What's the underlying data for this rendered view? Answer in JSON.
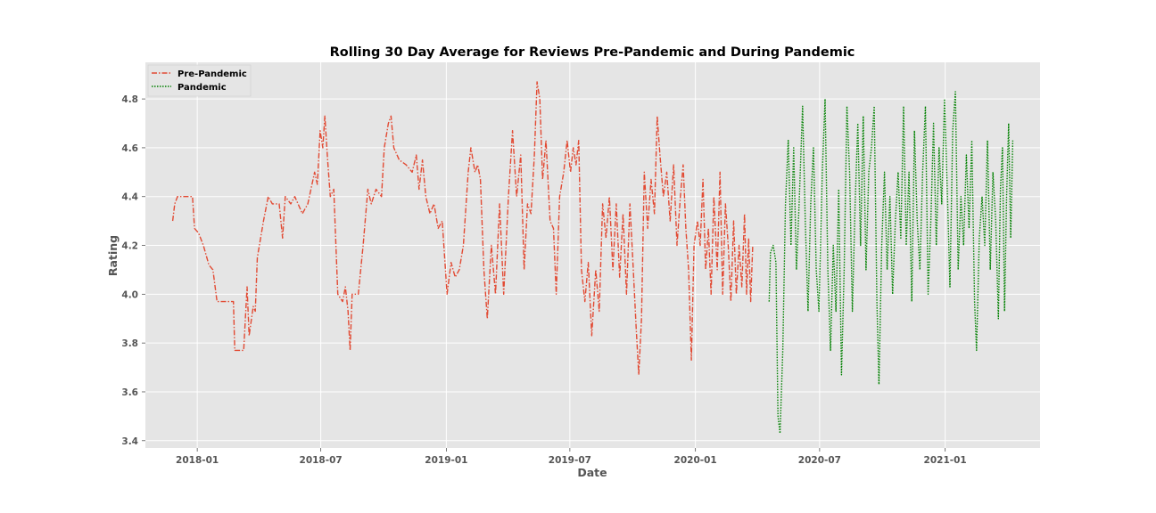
{
  "chart_data": {
    "type": "line",
    "title": "Rolling 30 Day Average for Reviews Pre-Pandemic and During Pandemic",
    "xlabel": "Date",
    "ylabel": "Rating",
    "ylim": [
      3.37,
      4.95
    ],
    "xlim": [
      "2017-10-17",
      "2021-05-20"
    ],
    "grid": true,
    "legend_position": "top-left",
    "x_ticks": [
      "2018-01",
      "2018-07",
      "2019-01",
      "2019-07",
      "2020-01",
      "2020-07",
      "2021-01"
    ],
    "y_ticks": [
      3.4,
      3.6,
      3.8,
      4.0,
      4.2,
      4.4,
      4.6,
      4.8
    ],
    "series": [
      {
        "name": "Pre-Pandemic",
        "color": "#E24A33",
        "style": "dashdot",
        "points": [
          [
            "2017-11-26",
            4.3
          ],
          [
            "2017-11-29",
            4.37
          ],
          [
            "2017-12-03",
            4.4
          ],
          [
            "2017-12-15",
            4.4
          ],
          [
            "2017-12-25",
            4.4
          ],
          [
            "2017-12-28",
            4.27
          ],
          [
            "2018-01-03",
            4.25
          ],
          [
            "2018-01-10",
            4.2
          ],
          [
            "2018-01-18",
            4.12
          ],
          [
            "2018-01-24",
            4.1
          ],
          [
            "2018-01-30",
            3.97
          ],
          [
            "2018-02-10",
            3.97
          ],
          [
            "2018-02-23",
            3.97
          ],
          [
            "2018-02-25",
            3.77
          ],
          [
            "2018-03-10",
            3.77
          ],
          [
            "2018-03-15",
            4.03
          ],
          [
            "2018-03-18",
            3.83
          ],
          [
            "2018-03-24",
            3.95
          ],
          [
            "2018-03-27",
            3.93
          ],
          [
            "2018-03-30",
            4.15
          ],
          [
            "2018-04-08",
            4.3
          ],
          [
            "2018-04-15",
            4.4
          ],
          [
            "2018-04-21",
            4.37
          ],
          [
            "2018-05-01",
            4.37
          ],
          [
            "2018-05-06",
            4.23
          ],
          [
            "2018-05-10",
            4.4
          ],
          [
            "2018-05-18",
            4.37
          ],
          [
            "2018-05-24",
            4.4
          ],
          [
            "2018-06-04",
            4.33
          ],
          [
            "2018-06-12",
            4.37
          ],
          [
            "2018-06-22",
            4.5
          ],
          [
            "2018-06-26",
            4.45
          ],
          [
            "2018-06-30",
            4.67
          ],
          [
            "2018-07-04",
            4.6
          ],
          [
            "2018-07-07",
            4.73
          ],
          [
            "2018-07-11",
            4.55
          ],
          [
            "2018-07-15",
            4.4
          ],
          [
            "2018-07-20",
            4.43
          ],
          [
            "2018-07-26",
            4.0
          ],
          [
            "2018-08-02",
            3.97
          ],
          [
            "2018-08-06",
            4.03
          ],
          [
            "2018-08-10",
            3.93
          ],
          [
            "2018-08-13",
            3.77
          ],
          [
            "2018-08-16",
            4.0
          ],
          [
            "2018-08-25",
            4.0
          ],
          [
            "2018-09-01",
            4.2
          ],
          [
            "2018-09-08",
            4.43
          ],
          [
            "2018-09-13",
            4.37
          ],
          [
            "2018-09-20",
            4.43
          ],
          [
            "2018-09-28",
            4.4
          ],
          [
            "2018-10-02",
            4.6
          ],
          [
            "2018-10-08",
            4.7
          ],
          [
            "2018-10-12",
            4.73
          ],
          [
            "2018-10-16",
            4.6
          ],
          [
            "2018-10-24",
            4.55
          ],
          [
            "2018-11-03",
            4.53
          ],
          [
            "2018-11-12",
            4.5
          ],
          [
            "2018-11-18",
            4.57
          ],
          [
            "2018-11-22",
            4.43
          ],
          [
            "2018-11-27",
            4.55
          ],
          [
            "2018-12-02",
            4.4
          ],
          [
            "2018-12-08",
            4.33
          ],
          [
            "2018-12-14",
            4.37
          ],
          [
            "2018-12-20",
            4.27
          ],
          [
            "2018-12-26",
            4.3
          ],
          [
            "2019-01-02",
            4.0
          ],
          [
            "2019-01-08",
            4.13
          ],
          [
            "2019-01-14",
            4.07
          ],
          [
            "2019-01-20",
            4.1
          ],
          [
            "2019-01-26",
            4.2
          ],
          [
            "2019-02-02",
            4.5
          ],
          [
            "2019-02-06",
            4.6
          ],
          [
            "2019-02-12",
            4.5
          ],
          [
            "2019-02-16",
            4.53
          ],
          [
            "2019-02-20",
            4.47
          ],
          [
            "2019-02-25",
            4.1
          ],
          [
            "2019-03-02",
            3.9
          ],
          [
            "2019-03-08",
            4.2
          ],
          [
            "2019-03-14",
            4.0
          ],
          [
            "2019-03-20",
            4.37
          ],
          [
            "2019-03-26",
            4.0
          ],
          [
            "2019-04-02",
            4.4
          ],
          [
            "2019-04-08",
            4.67
          ],
          [
            "2019-04-14",
            4.4
          ],
          [
            "2019-04-20",
            4.57
          ],
          [
            "2019-04-25",
            4.1
          ],
          [
            "2019-04-30",
            4.37
          ],
          [
            "2019-05-05",
            4.33
          ],
          [
            "2019-05-10",
            4.57
          ],
          [
            "2019-05-14",
            4.87
          ],
          [
            "2019-05-18",
            4.8
          ],
          [
            "2019-05-22",
            4.47
          ],
          [
            "2019-05-27",
            4.63
          ],
          [
            "2019-06-02",
            4.3
          ],
          [
            "2019-06-07",
            4.27
          ],
          [
            "2019-06-11",
            4.0
          ],
          [
            "2019-06-16",
            4.4
          ],
          [
            "2019-06-22",
            4.5
          ],
          [
            "2019-06-27",
            4.63
          ],
          [
            "2019-07-02",
            4.5
          ],
          [
            "2019-07-06",
            4.6
          ],
          [
            "2019-07-10",
            4.53
          ],
          [
            "2019-07-14",
            4.63
          ],
          [
            "2019-07-18",
            4.1
          ],
          [
            "2019-07-23",
            3.97
          ],
          [
            "2019-07-28",
            4.13
          ],
          [
            "2019-08-02",
            3.83
          ],
          [
            "2019-08-08",
            4.1
          ],
          [
            "2019-08-13",
            3.93
          ],
          [
            "2019-08-18",
            4.37
          ],
          [
            "2019-08-23",
            4.23
          ],
          [
            "2019-08-28",
            4.4
          ],
          [
            "2019-09-02",
            4.1
          ],
          [
            "2019-09-07",
            4.37
          ],
          [
            "2019-09-12",
            4.07
          ],
          [
            "2019-09-17",
            4.33
          ],
          [
            "2019-09-22",
            4.0
          ],
          [
            "2019-09-27",
            4.37
          ],
          [
            "2019-10-02",
            4.1
          ],
          [
            "2019-10-06",
            3.87
          ],
          [
            "2019-10-10",
            3.67
          ],
          [
            "2019-10-14",
            3.9
          ],
          [
            "2019-10-18",
            4.5
          ],
          [
            "2019-10-23",
            4.27
          ],
          [
            "2019-10-28",
            4.47
          ],
          [
            "2019-11-02",
            4.33
          ],
          [
            "2019-11-06",
            4.73
          ],
          [
            "2019-11-10",
            4.57
          ],
          [
            "2019-11-15",
            4.4
          ],
          [
            "2019-11-20",
            4.5
          ],
          [
            "2019-11-25",
            4.3
          ],
          [
            "2019-11-30",
            4.53
          ],
          [
            "2019-12-05",
            4.2
          ],
          [
            "2019-12-10",
            4.4
          ],
          [
            "2019-12-14",
            4.53
          ],
          [
            "2019-12-18",
            4.27
          ],
          [
            "2019-12-22",
            4.1
          ],
          [
            "2019-12-26",
            3.73
          ],
          [
            "2019-12-30",
            4.2
          ],
          [
            "2020-01-04",
            4.3
          ],
          [
            "2020-01-08",
            4.2
          ],
          [
            "2020-01-12",
            4.47
          ],
          [
            "2020-01-16",
            4.1
          ],
          [
            "2020-01-20",
            4.27
          ],
          [
            "2020-01-24",
            4.0
          ],
          [
            "2020-01-28",
            4.4
          ],
          [
            "2020-02-02",
            4.1
          ],
          [
            "2020-02-06",
            4.5
          ],
          [
            "2020-02-10",
            4.0
          ],
          [
            "2020-02-14",
            4.37
          ],
          [
            "2020-02-18",
            4.2
          ],
          [
            "2020-02-22",
            3.97
          ],
          [
            "2020-02-26",
            4.3
          ],
          [
            "2020-03-01",
            4.0
          ],
          [
            "2020-03-05",
            4.2
          ],
          [
            "2020-03-09",
            4.03
          ],
          [
            "2020-03-13",
            4.33
          ],
          [
            "2020-03-16",
            4.0
          ],
          [
            "2020-03-19",
            4.23
          ],
          [
            "2020-03-22",
            3.97
          ],
          [
            "2020-03-25",
            4.2
          ]
        ]
      },
      {
        "name": "Pandemic",
        "color": "#008000",
        "style": "dotted",
        "points": [
          [
            "2020-04-18",
            3.97
          ],
          [
            "2020-04-20",
            4.17
          ],
          [
            "2020-04-24",
            4.2
          ],
          [
            "2020-04-28",
            4.13
          ],
          [
            "2020-05-01",
            3.5
          ],
          [
            "2020-05-04",
            3.43
          ],
          [
            "2020-05-08",
            3.77
          ],
          [
            "2020-05-12",
            4.37
          ],
          [
            "2020-05-16",
            4.63
          ],
          [
            "2020-05-20",
            4.2
          ],
          [
            "2020-05-24",
            4.6
          ],
          [
            "2020-05-28",
            4.1
          ],
          [
            "2020-06-01",
            4.37
          ],
          [
            "2020-06-06",
            4.77
          ],
          [
            "2020-06-10",
            4.3
          ],
          [
            "2020-06-14",
            3.93
          ],
          [
            "2020-06-18",
            4.37
          ],
          [
            "2020-06-22",
            4.6
          ],
          [
            "2020-06-26",
            4.1
          ],
          [
            "2020-06-30",
            3.93
          ],
          [
            "2020-07-05",
            4.5
          ],
          [
            "2020-07-09",
            4.8
          ],
          [
            "2020-07-13",
            4.1
          ],
          [
            "2020-07-17",
            3.77
          ],
          [
            "2020-07-21",
            4.2
          ],
          [
            "2020-07-25",
            3.93
          ],
          [
            "2020-07-29",
            4.43
          ],
          [
            "2020-08-02",
            3.67
          ],
          [
            "2020-08-06",
            4.1
          ],
          [
            "2020-08-10",
            4.77
          ],
          [
            "2020-08-14",
            4.5
          ],
          [
            "2020-08-18",
            3.93
          ],
          [
            "2020-08-22",
            4.37
          ],
          [
            "2020-08-26",
            4.7
          ],
          [
            "2020-08-30",
            4.2
          ],
          [
            "2020-09-03",
            4.73
          ],
          [
            "2020-09-07",
            4.1
          ],
          [
            "2020-09-11",
            4.5
          ],
          [
            "2020-09-15",
            4.6
          ],
          [
            "2020-09-19",
            4.77
          ],
          [
            "2020-09-23",
            3.97
          ],
          [
            "2020-09-26",
            3.63
          ],
          [
            "2020-09-30",
            4.2
          ],
          [
            "2020-10-04",
            4.5
          ],
          [
            "2020-10-08",
            4.1
          ],
          [
            "2020-10-12",
            4.4
          ],
          [
            "2020-10-16",
            4.0
          ],
          [
            "2020-10-20",
            4.3
          ],
          [
            "2020-10-24",
            4.5
          ],
          [
            "2020-10-28",
            4.23
          ],
          [
            "2020-11-01",
            4.77
          ],
          [
            "2020-11-05",
            4.2
          ],
          [
            "2020-11-09",
            4.5
          ],
          [
            "2020-11-13",
            3.97
          ],
          [
            "2020-11-17",
            4.67
          ],
          [
            "2020-11-21",
            4.3
          ],
          [
            "2020-11-25",
            4.1
          ],
          [
            "2020-11-29",
            4.5
          ],
          [
            "2020-12-03",
            4.77
          ],
          [
            "2020-12-07",
            4.0
          ],
          [
            "2020-12-11",
            4.3
          ],
          [
            "2020-12-15",
            4.7
          ],
          [
            "2020-12-19",
            4.2
          ],
          [
            "2020-12-23",
            4.6
          ],
          [
            "2020-12-27",
            4.37
          ],
          [
            "2020-12-31",
            4.8
          ],
          [
            "2021-01-04",
            4.43
          ],
          [
            "2021-01-08",
            4.03
          ],
          [
            "2021-01-12",
            4.67
          ],
          [
            "2021-01-16",
            4.83
          ],
          [
            "2021-01-20",
            4.1
          ],
          [
            "2021-01-24",
            4.4
          ],
          [
            "2021-01-28",
            4.2
          ],
          [
            "2021-02-01",
            4.57
          ],
          [
            "2021-02-05",
            4.27
          ],
          [
            "2021-02-09",
            4.63
          ],
          [
            "2021-02-13",
            3.97
          ],
          [
            "2021-02-16",
            3.77
          ],
          [
            "2021-02-20",
            4.23
          ],
          [
            "2021-02-24",
            4.4
          ],
          [
            "2021-02-28",
            4.2
          ],
          [
            "2021-03-04",
            4.63
          ],
          [
            "2021-03-08",
            4.1
          ],
          [
            "2021-03-12",
            4.5
          ],
          [
            "2021-03-16",
            4.3
          ],
          [
            "2021-03-20",
            3.9
          ],
          [
            "2021-03-23",
            4.43
          ],
          [
            "2021-03-26",
            4.6
          ],
          [
            "2021-03-29",
            3.93
          ],
          [
            "2021-04-01",
            4.4
          ],
          [
            "2021-04-04",
            4.7
          ],
          [
            "2021-04-07",
            4.23
          ],
          [
            "2021-04-10",
            4.63
          ]
        ]
      }
    ]
  }
}
